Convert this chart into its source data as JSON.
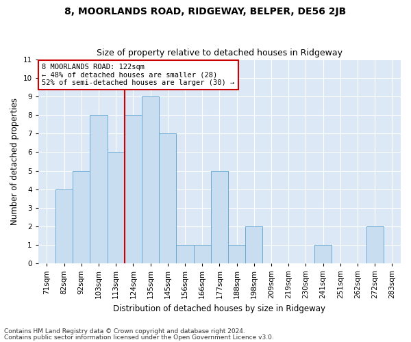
{
  "title": "8, MOORLANDS ROAD, RIDGEWAY, BELPER, DE56 2JB",
  "subtitle": "Size of property relative to detached houses in Ridgeway",
  "xlabel": "Distribution of detached houses by size in Ridgeway",
  "ylabel": "Number of detached properties",
  "categories": [
    "71sqm",
    "82sqm",
    "92sqm",
    "103sqm",
    "113sqm",
    "124sqm",
    "135sqm",
    "145sqm",
    "156sqm",
    "166sqm",
    "177sqm",
    "188sqm",
    "198sqm",
    "209sqm",
    "219sqm",
    "230sqm",
    "241sqm",
    "251sqm",
    "262sqm",
    "272sqm",
    "283sqm"
  ],
  "values": [
    0,
    4,
    5,
    8,
    6,
    8,
    9,
    7,
    1,
    1,
    5,
    1,
    2,
    0,
    0,
    0,
    1,
    0,
    0,
    2,
    0
  ],
  "bar_color": "#c9ddf0",
  "bar_edge_color": "#6aaad4",
  "vline_x": 4.5,
  "vline_color": "#cc0000",
  "annotation_text": "8 MOORLANDS ROAD: 122sqm\n← 48% of detached houses are smaller (28)\n52% of semi-detached houses are larger (30) →",
  "annotation_box_color": "#ffffff",
  "annotation_box_edge": "#cc0000",
  "ylim": [
    0,
    11
  ],
  "yticks": [
    0,
    1,
    2,
    3,
    4,
    5,
    6,
    7,
    8,
    9,
    10,
    11
  ],
  "footnote1": "Contains HM Land Registry data © Crown copyright and database right 2024.",
  "footnote2": "Contains public sector information licensed under the Open Government Licence v3.0.",
  "bg_color": "#dce8f5",
  "title_fontsize": 10,
  "subtitle_fontsize": 9,
  "tick_fontsize": 7.5,
  "label_fontsize": 8.5,
  "annot_fontsize": 7.5
}
